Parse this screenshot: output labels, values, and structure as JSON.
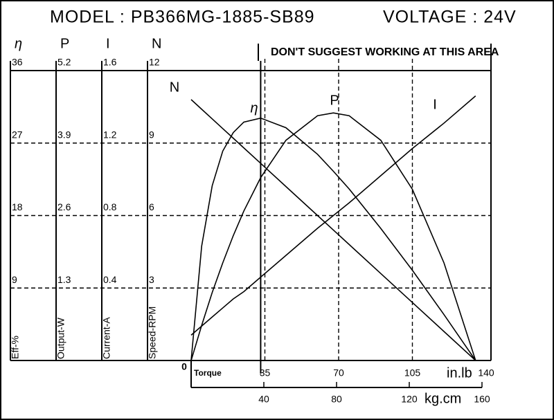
{
  "chart_data": {
    "type": "line",
    "title": "MODEL : PB366MG-1885-SB89",
    "subtitle": "VOLTAGE : 24V",
    "annotation": "DON'T SUGGEST WORKING AT THIS AREA",
    "xlabel": "Torque",
    "xunit": "in.lb",
    "x2unit": "kg.cm",
    "origin_label": "0",
    "xlim": [
      0,
      140
    ],
    "xticks": [
      35,
      70,
      105,
      140
    ],
    "x2lim": [
      0,
      160
    ],
    "x2ticks": [
      40,
      80,
      120,
      160
    ],
    "max_efficiency_torque": 33,
    "x": [
      0,
      5,
      10,
      15,
      20,
      25,
      33,
      45,
      60,
      67.5,
      75,
      90,
      105,
      120,
      135
    ],
    "series": [
      {
        "name": "η",
        "axis_label": "Eff-%",
        "color": "#000000",
        "ylim": [
          0,
          36
        ],
        "yticks": [
          9,
          18,
          27,
          36
        ],
        "values": [
          0,
          14.2,
          21.7,
          26.0,
          28.3,
          29.6,
          30.1,
          28.9,
          25.6,
          23.5,
          21.3,
          16.4,
          11.2,
          5.7,
          0
        ]
      },
      {
        "name": "P",
        "axis_label": "Output-W",
        "color": "#000000",
        "ylim": [
          0,
          5.2
        ],
        "yticks": [
          1.3,
          2.6,
          3.9,
          5.2
        ],
        "values": [
          0,
          0.63,
          1.22,
          1.75,
          2.24,
          2.68,
          3.28,
          3.95,
          4.39,
          4.44,
          4.39,
          3.95,
          3.07,
          1.75,
          0
        ]
      },
      {
        "name": "I",
        "axis_label": "Current-A",
        "color": "#000000",
        "ylim": [
          0,
          1.6
        ],
        "yticks": [
          0.4,
          0.8,
          1.2,
          1.6
        ],
        "values": [
          0.14,
          0.19,
          0.24,
          0.29,
          0.34,
          0.38,
          0.46,
          0.58,
          0.73,
          0.8,
          0.87,
          1.02,
          1.17,
          1.31,
          1.46
        ]
      },
      {
        "name": "N",
        "axis_label": "Speed-RPM",
        "color": "#000000",
        "ylim": [
          0,
          12
        ],
        "yticks": [
          3,
          6,
          9,
          12
        ],
        "values": [
          10.8,
          10.4,
          10.0,
          9.6,
          9.2,
          8.8,
          8.16,
          7.2,
          6.0,
          5.4,
          4.8,
          3.6,
          2.4,
          1.2,
          0
        ]
      }
    ]
  }
}
